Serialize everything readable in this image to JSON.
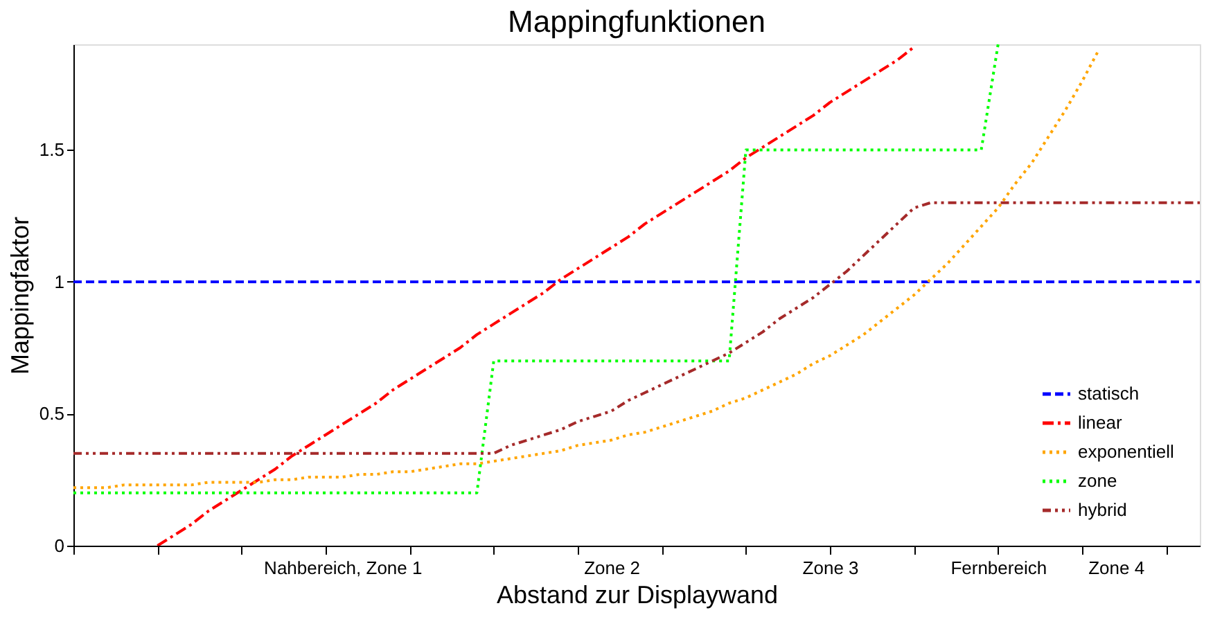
{
  "chart_data": {
    "type": "line",
    "title": "Mappingfunktionen",
    "xlabel": "Abstand zur Displaywand",
    "ylabel": "Mappingfaktor",
    "ylim": [
      0,
      1.9
    ],
    "yticks": [
      0,
      0.5,
      1,
      1.5
    ],
    "grid": false,
    "legend": "bottom right",
    "marker": "none",
    "categories": [
      null,
      null,
      null,
      null,
      null,
      null,
      null,
      null,
      null,
      null,
      null,
      null,
      null,
      null,
      null,
      null,
      "Nahbereich, Zone 1",
      null,
      null,
      null,
      null,
      null,
      null,
      null,
      null,
      null,
      null,
      null,
      null,
      null,
      null,
      null,
      "Zone 2",
      null,
      null,
      null,
      null,
      null,
      null,
      null,
      null,
      null,
      null,
      null,
      null,
      "Zone 3",
      null,
      null,
      null,
      null,
      null,
      null,
      null,
      null,
      null,
      "Fernbereich",
      null,
      null,
      null,
      null,
      null,
      null,
      "Zone 4",
      null,
      null,
      null,
      null,
      null
    ],
    "series": [
      {
        "name": "statisch",
        "color": "#0000ff",
        "line_style": "dashed",
        "values": [
          1,
          1,
          1,
          1,
          1,
          1,
          1,
          1,
          1,
          1,
          1,
          1,
          1,
          1,
          1,
          1,
          1,
          1,
          1,
          1,
          1,
          1,
          1,
          1,
          1,
          1,
          1,
          1,
          1,
          1,
          1,
          1,
          1,
          1,
          1,
          1,
          1,
          1,
          1,
          1,
          1,
          1,
          1,
          1,
          1,
          1,
          1,
          1,
          1,
          1,
          1,
          1,
          1,
          1,
          1,
          1,
          1,
          1,
          1,
          1,
          1,
          1,
          1,
          1,
          1,
          1,
          1,
          1
        ]
      },
      {
        "name": "linear",
        "color": "#ff0000",
        "line_style": "dashdot",
        "values": [
          null,
          null,
          null,
          null,
          null,
          0,
          0.04,
          0.08,
          0.13,
          0.17,
          0.21,
          0.25,
          0.29,
          0.34,
          0.38,
          0.42,
          0.46,
          0.5,
          0.54,
          0.59,
          0.63,
          0.67,
          0.71,
          0.75,
          0.8,
          0.84,
          0.88,
          0.92,
          0.96,
          1.01,
          1.05,
          1.09,
          1.13,
          1.17,
          1.22,
          1.26,
          1.3,
          1.34,
          1.38,
          1.42,
          1.47,
          1.51,
          1.55,
          1.59,
          1.63,
          1.68,
          1.72,
          1.76,
          1.8,
          1.84,
          1.89,
          null,
          null,
          null,
          null,
          null,
          null,
          null,
          null,
          null,
          null,
          null,
          null,
          null,
          null,
          null,
          null,
          null
        ]
      },
      {
        "name": "exponentiell",
        "color": "#ffa500",
        "line_style": "dotted",
        "values": [
          0.22,
          0.22,
          0.22,
          0.23,
          0.23,
          0.23,
          0.23,
          0.23,
          0.24,
          0.24,
          0.24,
          0.24,
          0.25,
          0.25,
          0.26,
          0.26,
          0.26,
          0.27,
          0.27,
          0.28,
          0.28,
          0.29,
          0.3,
          0.31,
          0.31,
          0.32,
          0.33,
          0.34,
          0.35,
          0.36,
          0.38,
          0.39,
          0.4,
          0.42,
          0.43,
          0.45,
          0.47,
          0.49,
          0.51,
          0.54,
          0.56,
          0.59,
          0.62,
          0.65,
          0.69,
          0.72,
          0.76,
          0.8,
          0.85,
          0.9,
          0.95,
          1.01,
          1.07,
          1.14,
          1.21,
          1.28,
          1.37,
          1.45,
          1.55,
          1.65,
          1.76,
          1.88,
          null,
          null,
          null,
          null,
          null,
          null
        ]
      },
      {
        "name": "zone",
        "color": "#00ff00",
        "line_style": "dotted",
        "values": [
          0.2,
          0.2,
          0.2,
          0.2,
          0.2,
          0.2,
          0.2,
          0.2,
          0.2,
          0.2,
          0.2,
          0.2,
          0.2,
          0.2,
          0.2,
          0.2,
          0.2,
          0.2,
          0.2,
          0.2,
          0.2,
          0.2,
          0.2,
          0.2,
          0.2,
          0.7,
          0.7,
          0.7,
          0.7,
          0.7,
          0.7,
          0.7,
          0.7,
          0.7,
          0.7,
          0.7,
          0.7,
          0.7,
          0.7,
          0.7,
          1.5,
          1.5,
          1.5,
          1.5,
          1.5,
          1.5,
          1.5,
          1.5,
          1.5,
          1.5,
          1.5,
          1.5,
          1.5,
          1.5,
          1.5,
          1.9,
          null,
          null,
          null,
          null,
          null,
          null,
          null,
          null,
          null,
          null,
          null,
          null
        ]
      },
      {
        "name": "hybrid",
        "color": "#a52a2a",
        "line_style": "dashdotdot",
        "values": [
          0.35,
          0.35,
          0.35,
          0.35,
          0.35,
          0.35,
          0.35,
          0.35,
          0.35,
          0.35,
          0.35,
          0.35,
          0.35,
          0.35,
          0.35,
          0.35,
          0.35,
          0.35,
          0.35,
          0.35,
          0.35,
          0.35,
          0.35,
          0.35,
          0.35,
          0.35,
          0.38,
          0.4,
          0.42,
          0.44,
          0.47,
          0.49,
          0.51,
          0.55,
          0.58,
          0.61,
          0.64,
          0.67,
          0.7,
          0.73,
          0.77,
          0.81,
          0.86,
          0.9,
          0.94,
          0.99,
          1.04,
          1.1,
          1.16,
          1.22,
          1.28,
          1.3,
          1.3,
          1.3,
          1.3,
          1.3,
          1.3,
          1.3,
          1.3,
          1.3,
          1.3,
          1.3,
          1.3,
          1.3,
          1.3,
          1.3,
          1.3,
          1.3
        ]
      }
    ]
  }
}
